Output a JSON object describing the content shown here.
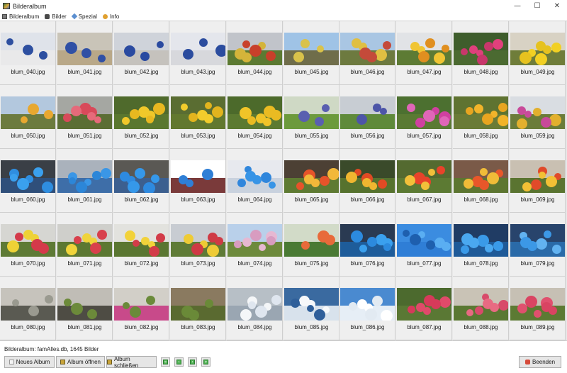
{
  "window": {
    "title": "Bilderalbum",
    "controls": [
      "—",
      "☐",
      "✕"
    ]
  },
  "menu": [
    {
      "label": "Bilderalbum",
      "icon": "album-icon"
    },
    {
      "label": "Bilder",
      "icon": "pictures-icon"
    },
    {
      "label": "Spezial",
      "icon": "special-icon"
    },
    {
      "label": "Info",
      "icon": "info-icon"
    }
  ],
  "grid": {
    "columns": 10,
    "rows": 5,
    "thumbnails": [
      {
        "caption": "blum_040.jpg",
        "sky": "#dfe3ea",
        "ground": "#e9e9ea",
        "flowers": [
          "#2d4fa0"
        ]
      },
      {
        "caption": "blum_041.jpg",
        "sky": "#c9c4b8",
        "ground": "#b9a888",
        "flowers": [
          "#3050a5"
        ]
      },
      {
        "caption": "blum_042.jpg",
        "sky": "#cfd3da",
        "ground": "#c5c2bd",
        "flowers": [
          "#2a4aa0"
        ]
      },
      {
        "caption": "blum_043.jpg",
        "sky": "#e4e6ec",
        "ground": "#d7d8dc",
        "flowers": [
          "#2b4c9e"
        ]
      },
      {
        "caption": "blum_044.jpg",
        "sky": "#c1c4ca",
        "ground": "#5c7a32",
        "flowers": [
          "#d4b43a",
          "#c8402a"
        ]
      },
      {
        "caption": "blum_045.jpg",
        "sky": "#9fc3e6",
        "ground": "#6f6d4a",
        "flowers": [
          "#d9c24a"
        ]
      },
      {
        "caption": "blum_046.jpg",
        "sky": "#a9c6e3",
        "ground": "#6d7a3f",
        "flowers": [
          "#e0bf42",
          "#c44a3a"
        ]
      },
      {
        "caption": "blum_047.jpg",
        "sky": "#e1e3e6",
        "ground": "#5d7b34",
        "flowers": [
          "#f0c534",
          "#e08f20"
        ]
      },
      {
        "caption": "blum_048.jpg",
        "sky": "#3e5d2c",
        "ground": "#4b6a31",
        "flowers": [
          "#e0407c",
          "#c8376b"
        ]
      },
      {
        "caption": "blum_049.jpg",
        "sky": "#d8d2c4",
        "ground": "#6f7d3a",
        "flowers": [
          "#f2d023",
          "#e6c21f"
        ]
      },
      {
        "caption": "blum_050.jpg",
        "sky": "#b3c8de",
        "ground": "#6c7b3f",
        "flowers": [
          "#e8a830"
        ]
      },
      {
        "caption": "blum_051.jpg",
        "sky": "#a5a7a2",
        "ground": "#5b6e34",
        "flowers": [
          "#d84a5a",
          "#e66a7a"
        ]
      },
      {
        "caption": "blum_052.jpg",
        "sky": "#4f6a2c",
        "ground": "#5a772f",
        "flowers": [
          "#f0c82a",
          "#e8b820"
        ]
      },
      {
        "caption": "blum_053.jpg",
        "sky": "#5a6d32",
        "ground": "#62782f",
        "flowers": [
          "#f2cc2c",
          "#e2b41e"
        ]
      },
      {
        "caption": "blum_054.jpg",
        "sky": "#4c6a2b",
        "ground": "#5c7a31",
        "flowers": [
          "#f0c428",
          "#eabb22"
        ]
      },
      {
        "caption": "blum_055.jpg",
        "sky": "#cfd9c5",
        "ground": "#6c9a3c",
        "flowers": [
          "#5a5fb0"
        ]
      },
      {
        "caption": "blum_056.jpg",
        "sky": "#c8cdd3",
        "ground": "#5f8a3a",
        "flowers": [
          "#4d55a8"
        ]
      },
      {
        "caption": "blum_057.jpg",
        "sky": "#4c7030",
        "ground": "#5a7a33",
        "flowers": [
          "#d040a0",
          "#e066b8"
        ]
      },
      {
        "caption": "blum_058.jpg",
        "sky": "#5f7331",
        "ground": "#6a7b36",
        "flowers": [
          "#f2b42a",
          "#e8a520"
        ]
      },
      {
        "caption": "blum_059.jpg",
        "sky": "#d9dde2",
        "ground": "#6b7c3a",
        "flowers": [
          "#e2b02e",
          "#c84a9a"
        ]
      },
      {
        "caption": "blum_060.jpg",
        "sky": "#3a3f46",
        "ground": "#2f4f7a",
        "flowers": [
          "#2f8ee0",
          "#3aa0ee"
        ]
      },
      {
        "caption": "blum_061.jpg",
        "sky": "#aab2bc",
        "ground": "#3e6ea8",
        "flowers": [
          "#3a96e6",
          "#2c86d8"
        ]
      },
      {
        "caption": "blum_062.jpg",
        "sky": "#5a5854",
        "ground": "#3c5f8f",
        "flowers": [
          "#2e8ae0",
          "#3598ea"
        ]
      },
      {
        "caption": "blum_063.jpg",
        "sky": "#ffffff",
        "ground": "#7a3a3a",
        "flowers": [
          "#2f7fd6"
        ]
      },
      {
        "caption": "blum_064.jpg",
        "sky": "#e7e9ee",
        "ground": "#c9d2de",
        "flowers": [
          "#2f86dc",
          "#3794e6"
        ]
      },
      {
        "caption": "blum_065.jpg",
        "sky": "#4c4034",
        "ground": "#5e7a32",
        "flowers": [
          "#e6532a",
          "#f2b83a"
        ]
      },
      {
        "caption": "blum_066.jpg",
        "sky": "#3a4a2a",
        "ground": "#56722e",
        "flowers": [
          "#e04a24",
          "#f0b630"
        ]
      },
      {
        "caption": "blum_067.jpg",
        "sky": "#546a30",
        "ground": "#5c7a33",
        "flowers": [
          "#e8432a",
          "#f2c03a"
        ]
      },
      {
        "caption": "blum_068.jpg",
        "sky": "#7a5a48",
        "ground": "#5d7631",
        "flowers": [
          "#e8572a",
          "#f0bc38"
        ]
      },
      {
        "caption": "blum_069.jpg",
        "sky": "#c9c0b2",
        "ground": "#5a7430",
        "flowers": [
          "#e04a2a",
          "#f2c035"
        ]
      },
      {
        "caption": "blum_070.jpg",
        "sky": "#d6d6d2",
        "ground": "#5e7a35",
        "flowers": [
          "#eed236",
          "#d43a4a"
        ]
      },
      {
        "caption": "blum_071.jpg",
        "sky": "#cfcfcb",
        "ground": "#5c7832",
        "flowers": [
          "#f0d43a",
          "#d8404c"
        ]
      },
      {
        "caption": "blum_072.jpg",
        "sky": "#e2e2de",
        "ground": "#5a7631",
        "flowers": [
          "#f2d23a",
          "#d23c48"
        ]
      },
      {
        "caption": "blum_073.jpg",
        "sky": "#c8ccd2",
        "ground": "#5f7b36",
        "flowers": [
          "#eecb35",
          "#cf3a44"
        ]
      },
      {
        "caption": "blum_074.jpg",
        "sky": "#b9d0ea",
        "ground": "#6d8a3c",
        "flowers": [
          "#e6b8d2",
          "#d89cc0"
        ]
      },
      {
        "caption": "blum_075.jpg",
        "sky": "#d2dbc8",
        "ground": "#4a7a34",
        "flowers": [
          "#e86a3a"
        ]
      },
      {
        "caption": "blum_076.jpg",
        "sky": "#2a3a52",
        "ground": "#1e5c9a",
        "flowers": [
          "#3aa0ee",
          "#2c8ade"
        ]
      },
      {
        "caption": "blum_077.jpg",
        "sky": "#3b8ce0",
        "ground": "#2f7ed6",
        "flowers": [
          "#5aaef2",
          "#1e5fae"
        ]
      },
      {
        "caption": "blum_078.jpg",
        "sky": "#203c64",
        "ground": "#1f5a98",
        "flowers": [
          "#3a9ae8",
          "#4aa8f0"
        ]
      },
      {
        "caption": "blum_079.jpg",
        "sky": "#28446c",
        "ground": "#2a6aa8",
        "flowers": [
          "#62b2f0",
          "#3c98e6"
        ]
      },
      {
        "caption": "blum_080.jpg",
        "sky": "#c6c3bc",
        "ground": "#5a5a52",
        "flowers": [
          "#9a9a90"
        ]
      },
      {
        "caption": "blum_081.jpg",
        "sky": "#c0bdb6",
        "ground": "#4e4c44",
        "flowers": [
          "#6c8a3a"
        ]
      },
      {
        "caption": "blum_082.jpg",
        "sky": "#d2cfc8",
        "ground": "#c84a8a",
        "flowers": [
          "#6a8a3a"
        ]
      },
      {
        "caption": "blum_083.jpg",
        "sky": "#8a7a60",
        "ground": "#5a6a30",
        "flowers": [
          "#6a8a38"
        ]
      },
      {
        "caption": "blum_084.jpg",
        "sky": "#b7bfc6",
        "ground": "#9aa6b2",
        "flowers": [
          "#f4f6f8",
          "#dfe6ef"
        ]
      },
      {
        "caption": "blum_085.jpg",
        "sky": "#3a6aa0",
        "ground": "#d8e2ec",
        "flowers": [
          "#f6f8fa",
          "#2f5f9a"
        ]
      },
      {
        "caption": "blum_086.jpg",
        "sky": "#4a8ad0",
        "ground": "#e6eef6",
        "flowers": [
          "#ffffff",
          "#e2eaf2"
        ]
      },
      {
        "caption": "blum_087.jpg",
        "sky": "#4c6a2e",
        "ground": "#5a7834",
        "flowers": [
          "#e04a6a",
          "#d63a5a"
        ]
      },
      {
        "caption": "blum_088.jpg",
        "sky": "#c9c3b6",
        "ground": "#5a7832",
        "flowers": [
          "#d84a6a",
          "#e86a82"
        ]
      },
      {
        "caption": "blum_089.jpg",
        "sky": "#c6c0b4",
        "ground": "#5c7a33",
        "flowers": [
          "#e0506e",
          "#d94462"
        ]
      }
    ]
  },
  "status": "Bilderalbum: famAlles.db, 1645 Bilder",
  "buttons": {
    "new_album": "Neues Album",
    "open_album": "Album öffnen",
    "close_album": "Album schließen",
    "quit": "Beenden"
  },
  "nav": [
    "first-icon",
    "prev-icon",
    "next-icon",
    "last-icon"
  ],
  "nav_glyphs": [
    "«",
    "‹",
    "›",
    "»"
  ]
}
